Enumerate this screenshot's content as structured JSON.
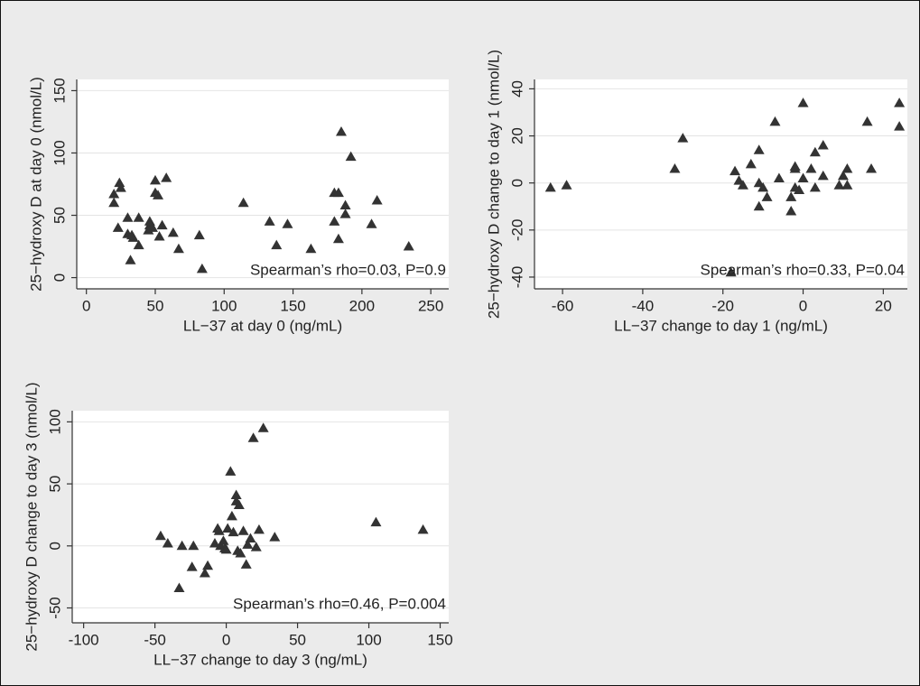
{
  "chart_data": [
    {
      "type": "scatter",
      "x_label": "LL−37 at day 0 (ng/mL)",
      "y_label": "25−hydroxy D at day 0 (nmol/L)",
      "annotation": "Spearman’s rho=0.03, P=0.9",
      "color": "#333333",
      "grid": true,
      "xlim": [
        -7,
        263
      ],
      "ylim": [
        -9,
        159
      ],
      "xticks": [
        0,
        50,
        100,
        150,
        200,
        250
      ],
      "yticks": [
        0,
        50,
        100,
        150
      ],
      "x": [
        20,
        20,
        24,
        25,
        23,
        30,
        30,
        32,
        34,
        38,
        38,
        46,
        46,
        48,
        50,
        50,
        52,
        53,
        55,
        58,
        63,
        67,
        82,
        84,
        114,
        133,
        138,
        146,
        163,
        180,
        180,
        183,
        183,
        185,
        188,
        188,
        192,
        207,
        211,
        234,
        45,
        33
      ],
      "y": [
        67,
        60,
        76,
        72,
        40,
        35,
        48,
        14,
        32,
        48,
        26,
        42,
        45,
        40,
        78,
        68,
        66,
        33,
        42,
        80,
        36,
        23,
        34,
        7,
        60,
        45,
        26,
        43,
        23,
        45,
        68,
        68,
        31,
        117,
        51,
        58,
        97,
        43,
        62,
        25,
        38,
        34
      ]
    },
    {
      "type": "scatter",
      "x_label": "LL−37 change to day 1 (ng/mL)",
      "y_label": "25−hydroxy D change to day 1 (nmol/L)",
      "annotation": "Spearman’s rho=0.33, P=0.04",
      "color": "#333333",
      "grid": true,
      "xlim": [
        -67,
        26
      ],
      "ylim": [
        -45,
        44
      ],
      "xticks": [
        -60,
        -40,
        -20,
        0,
        20
      ],
      "yticks": [
        -40,
        -20,
        0,
        20,
        40
      ],
      "x": [
        -63,
        -59,
        -32,
        -30,
        -18,
        -17,
        -16,
        -15,
        -13,
        -11,
        -11,
        -11,
        -10,
        -9,
        -7,
        -6,
        -3,
        -3,
        -2,
        -2,
        -2,
        -1,
        0,
        0,
        2,
        3,
        3,
        5,
        5,
        9,
        10,
        11,
        11,
        16,
        17,
        24,
        24
      ],
      "y": [
        -2,
        -1,
        6,
        19,
        -38,
        5,
        1,
        -1,
        8,
        -10,
        14,
        0,
        -2,
        -6,
        26,
        2,
        -12,
        -6,
        6,
        7,
        -2,
        -3,
        2,
        34,
        6,
        13,
        -2,
        16,
        3,
        -1,
        3,
        -1,
        6,
        26,
        6,
        34,
        24
      ]
    },
    {
      "type": "scatter",
      "x_label": "LL−37 change to day 3 (ng/mL)",
      "y_label": "25−hydroxy D change to day 3 (nmol/L)",
      "annotation": "Spearman’s rho=0.46, P=0.004",
      "color": "#333333",
      "grid": true,
      "xlim": [
        -108,
        156
      ],
      "ylim": [
        -62,
        109
      ],
      "xticks": [
        -100,
        -50,
        0,
        50,
        100,
        150
      ],
      "yticks": [
        -50,
        0,
        50,
        100
      ],
      "x": [
        -46,
        -41,
        -33,
        -31,
        -24,
        -23,
        -15,
        -13,
        -8,
        -6,
        -5,
        -4,
        -2,
        -1,
        0,
        1,
        3,
        4,
        5,
        7,
        7,
        8,
        9,
        10,
        12,
        14,
        15,
        17,
        19,
        21,
        23,
        26,
        34,
        105,
        138
      ],
      "y": [
        8,
        2,
        -34,
        0,
        -17,
        0,
        -22,
        -16,
        2,
        14,
        12,
        0,
        4,
        -2,
        -3,
        14,
        60,
        24,
        11,
        41,
        36,
        -4,
        33,
        -6,
        12,
        -15,
        1,
        6,
        87,
        -1,
        13,
        95,
        7,
        19,
        13
      ]
    }
  ]
}
